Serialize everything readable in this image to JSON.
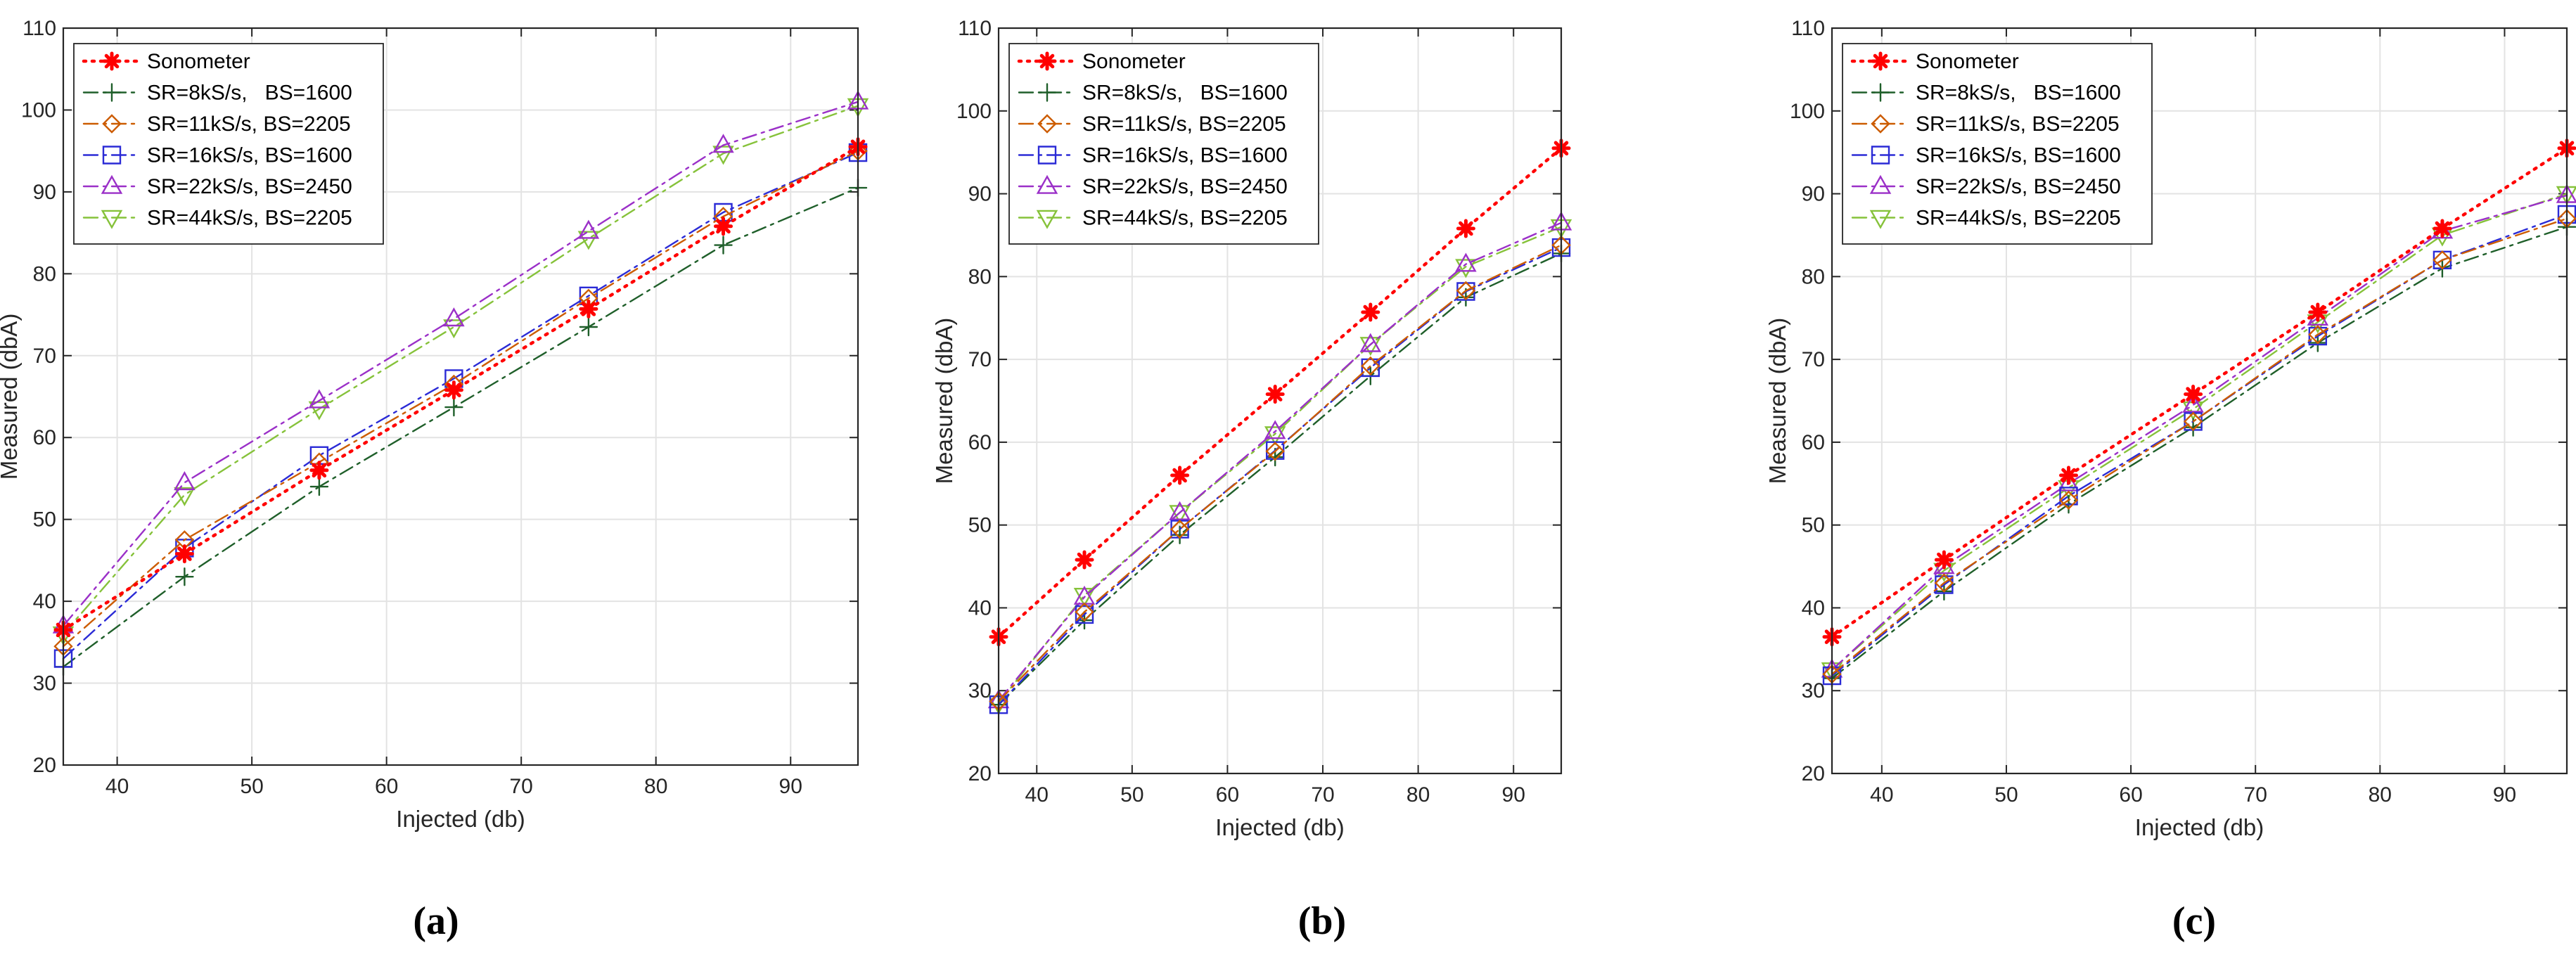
{
  "chart_data": [
    {
      "type": "line",
      "caption": "(a)",
      "xlabel": "Injected (db)",
      "ylabel": "Measured (dbA)",
      "xlim": [
        36,
        95
      ],
      "ylim": [
        20,
        110
      ],
      "xticks": [
        40,
        50,
        60,
        70,
        80,
        90
      ],
      "yticks": [
        20,
        30,
        40,
        50,
        60,
        70,
        80,
        90,
        100,
        110
      ],
      "grid": true,
      "legend_position": "top-left",
      "x": [
        36,
        45,
        55,
        65,
        75,
        85,
        95
      ],
      "series": [
        {
          "name": "Sonometer",
          "color": "#ff0000",
          "marker": "asterisk",
          "line": "dotted",
          "values": [
            36.5,
            45.8,
            56,
            65.8,
            75.7,
            85.8,
            95.5
          ]
        },
        {
          "name": "SR=8kS/s,   BS=1600",
          "color": "#1f5f2a",
          "marker": "plus",
          "line": "dashdot",
          "values": [
            32,
            43,
            54,
            63.7,
            73.5,
            83.5,
            90.5
          ]
        },
        {
          "name": "SR=11kS/s, BS=2205",
          "color": "#cc5c00",
          "marker": "diamond",
          "line": "dashdot",
          "values": [
            34.5,
            47.5,
            57,
            66.5,
            77,
            87,
            95
          ]
        },
        {
          "name": "SR=16kS/s, BS=1600",
          "color": "#2b2bd6",
          "marker": "square",
          "line": "dashdot",
          "values": [
            33,
            46.5,
            57.8,
            67.2,
            77.3,
            87.5,
            94.8
          ]
        },
        {
          "name": "SR=22kS/s, BS=2450",
          "color": "#9b30c8",
          "marker": "triangle-up",
          "line": "dashdot",
          "values": [
            37,
            54.5,
            64.5,
            74.5,
            85.2,
            95.7,
            101
          ]
        },
        {
          "name": "SR=44kS/s, BS=2205",
          "color": "#86c23a",
          "marker": "triangle-down",
          "line": "dashdot",
          "values": [
            36,
            53,
            63.5,
            73.5,
            84.3,
            94.7,
            100.5
          ]
        }
      ]
    },
    {
      "type": "line",
      "caption": "(b)",
      "xlabel": "Injected (db)",
      "ylabel": "Measured (dbA)",
      "xlim": [
        36,
        95
      ],
      "ylim": [
        20,
        110
      ],
      "xticks": [
        40,
        50,
        60,
        70,
        80,
        90
      ],
      "yticks": [
        20,
        30,
        40,
        50,
        60,
        70,
        80,
        90,
        100,
        110
      ],
      "grid": true,
      "legend_position": "top-left",
      "x": [
        36,
        45,
        55,
        65,
        75,
        85,
        95
      ],
      "series": [
        {
          "name": "Sonometer",
          "color": "#ff0000",
          "marker": "asterisk",
          "line": "dotted",
          "values": [
            36.5,
            45.8,
            56,
            65.8,
            75.7,
            85.8,
            95.5
          ]
        },
        {
          "name": "SR=8kS/s,   BS=1600",
          "color": "#1f5f2a",
          "marker": "plus",
          "line": "dashdot",
          "values": [
            28.3,
            38.5,
            48.8,
            58.2,
            68,
            77.5,
            82.8
          ]
        },
        {
          "name": "SR=11kS/s, BS=2205",
          "color": "#cc5c00",
          "marker": "diamond",
          "line": "dashdot",
          "values": [
            28.7,
            39.5,
            49.5,
            58.9,
            69.2,
            78.3,
            83.8
          ]
        },
        {
          "name": "SR=16kS/s, BS=1600",
          "color": "#2b2bd6",
          "marker": "square",
          "line": "dashdot",
          "values": [
            28.3,
            39.2,
            49.5,
            59,
            69,
            78.2,
            83.5
          ]
        },
        {
          "name": "SR=22kS/s, BS=2450",
          "color": "#9b30c8",
          "marker": "triangle-up",
          "line": "dashdot",
          "values": [
            28.8,
            41.3,
            51.5,
            61.3,
            71.8,
            81.5,
            86.5
          ]
        },
        {
          "name": "SR=44kS/s, BS=2205",
          "color": "#86c23a",
          "marker": "triangle-down",
          "line": "dashdot",
          "values": [
            28.5,
            41.5,
            51.5,
            61,
            71.8,
            81.2,
            86
          ]
        }
      ]
    },
    {
      "type": "line",
      "caption": "(c)",
      "xlabel": "Injected (db)",
      "ylabel": "Measured (dbA)",
      "xlim": [
        36,
        95
      ],
      "ylim": [
        20,
        110
      ],
      "xticks": [
        40,
        50,
        60,
        70,
        80,
        90
      ],
      "yticks": [
        20,
        30,
        40,
        50,
        60,
        70,
        80,
        90,
        100,
        110
      ],
      "grid": true,
      "legend_position": "top-left",
      "x": [
        36,
        45,
        55,
        65,
        75,
        85,
        95
      ],
      "series": [
        {
          "name": "Sonometer",
          "color": "#ff0000",
          "marker": "asterisk",
          "line": "dotted",
          "values": [
            36.5,
            45.8,
            56,
            65.8,
            75.7,
            85.8,
            95.5
          ]
        },
        {
          "name": "SR=8kS/s,   BS=1600",
          "color": "#1f5f2a",
          "marker": "plus",
          "line": "dashdot",
          "values": [
            31.5,
            42,
            52.5,
            61.8,
            72,
            81,
            86
          ]
        },
        {
          "name": "SR=11kS/s, BS=2205",
          "color": "#cc5c00",
          "marker": "diamond",
          "line": "dashdot",
          "values": [
            32,
            43,
            53,
            62.5,
            73,
            82,
            87
          ]
        },
        {
          "name": "SR=16kS/s, BS=1600",
          "color": "#2b2bd6",
          "marker": "square",
          "line": "dashdot",
          "values": [
            31.8,
            42.8,
            53.5,
            62.5,
            72.8,
            82,
            87.5
          ]
        },
        {
          "name": "SR=22kS/s, BS=2450",
          "color": "#9b30c8",
          "marker": "triangle-up",
          "line": "dashdot",
          "values": [
            32.5,
            45,
            55,
            64.5,
            75,
            85.5,
            89.8
          ]
        },
        {
          "name": "SR=44kS/s, BS=2205",
          "color": "#86c23a",
          "marker": "triangle-down",
          "line": "dashdot",
          "values": [
            32.5,
            44.5,
            54.5,
            64,
            74.5,
            85,
            90
          ]
        }
      ]
    }
  ]
}
